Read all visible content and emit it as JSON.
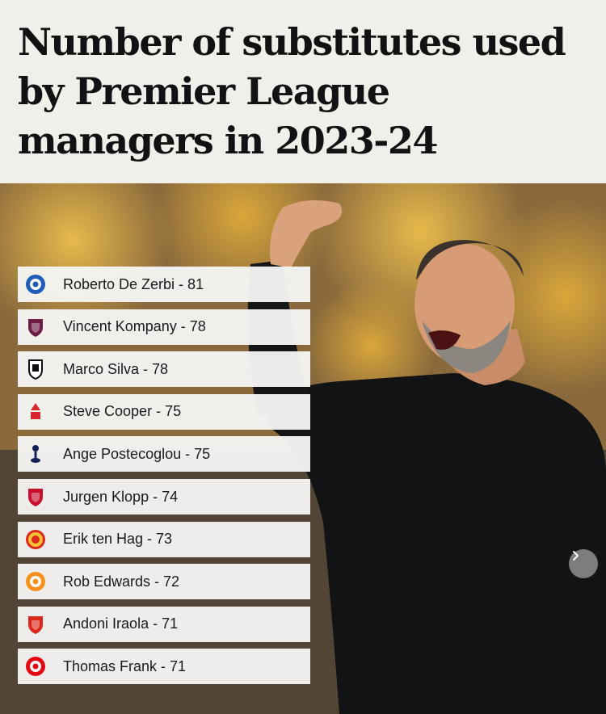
{
  "title": "Number of substitutes used by Premier League managers in 2023-24",
  "chart_data": {
    "type": "table",
    "title": "Number of substitutes used by Premier League managers in 2023-24",
    "rows": [
      {
        "label": "Roberto De Zerbi - 81",
        "manager": "Roberto De Zerbi",
        "value": 81,
        "club_icon": "brighton-badge-icon",
        "color": "#1f5bb8"
      },
      {
        "label": "Vincent Kompany - 78",
        "manager": "Vincent Kompany",
        "value": 78,
        "club_icon": "burnley-badge-icon",
        "color": "#6c1d45"
      },
      {
        "label": "Marco Silva - 78",
        "manager": "Marco Silva",
        "value": 78,
        "club_icon": "fulham-badge-icon",
        "color": "#111111"
      },
      {
        "label": "Steve Cooper - 75",
        "manager": "Steve Cooper",
        "value": 75,
        "club_icon": "nottingham-forest-badge-icon",
        "color": "#d8262c"
      },
      {
        "label": "Ange Postecoglou - 75",
        "manager": "Ange Postecoglou",
        "value": 75,
        "club_icon": "tottenham-badge-icon",
        "color": "#132257"
      },
      {
        "label": "Jurgen Klopp - 74",
        "manager": "Jurgen Klopp",
        "value": 74,
        "club_icon": "liverpool-badge-icon",
        "color": "#c8102e"
      },
      {
        "label": "Erik ten Hag - 73",
        "manager": "Erik ten Hag",
        "value": 73,
        "club_icon": "manchester-united-badge-icon",
        "color": "#da291c"
      },
      {
        "label": "Rob Edwards - 72",
        "manager": "Rob Edwards",
        "value": 72,
        "club_icon": "luton-town-badge-icon",
        "color": "#f78f1e"
      },
      {
        "label": "Andoni Iraola - 71",
        "manager": "Andoni Iraola",
        "value": 71,
        "club_icon": "bournemouth-badge-icon",
        "color": "#da291c"
      },
      {
        "label": "Thomas Frank - 71",
        "manager": "Thomas Frank",
        "value": 71,
        "club_icon": "brentford-badge-icon",
        "color": "#e30613"
      }
    ]
  },
  "carousel": {
    "next_icon": "chevron-right-icon"
  }
}
